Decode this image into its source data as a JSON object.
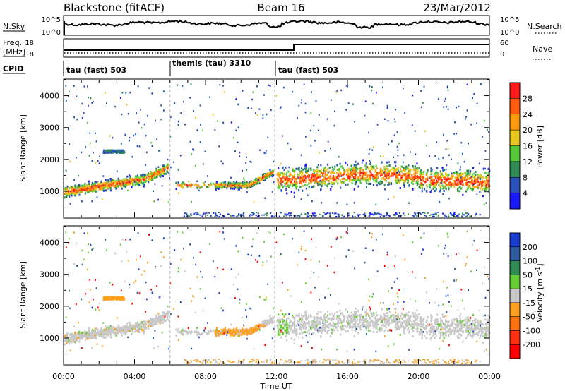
{
  "header": {
    "radar": "Blackstone (fitACF)",
    "beam": "Beam 16",
    "date": "23/Mar/2012"
  },
  "nsky_panel": {
    "left_label": "N.Sky",
    "right_label": "N.Search",
    "left_ticks": [
      "10^5",
      "10^0"
    ],
    "right_ticks": [
      "10^5",
      "10^0"
    ]
  },
  "freq_panel": {
    "left_label_top": "Freq.",
    "left_label_bottom": "[MHz]",
    "right_label": "Nave",
    "left_ticks": [
      "18",
      "8"
    ],
    "right_ticks": [
      "60",
      "0"
    ]
  },
  "cpid_panel": {
    "label": "CPID",
    "segments": [
      {
        "label": "tau (fast) 503",
        "start_hour": 0,
        "end_hour": 6
      },
      {
        "label": "themis (tau) 3310",
        "start_hour": 6,
        "end_hour": 11.9
      },
      {
        "label": "tau (fast) 503",
        "start_hour": 11.9,
        "end_hour": 24
      }
    ]
  },
  "colors": {
    "power": [
      "#1a1aff",
      "#2b4fb8",
      "#2f8a52",
      "#55c83a",
      "#e8c81e",
      "#ff9a10",
      "#ff5a10",
      "#ff1a1a"
    ],
    "velocity_pos": [
      "#1a3fd0",
      "#2f5a9a",
      "#2f8a52",
      "#66cc33"
    ],
    "velocity_neg": [
      "#c8c8c8",
      "#ffa020",
      "#ff7010",
      "#ff3010",
      "#ff0000"
    ]
  },
  "chart_data": [
    {
      "type": "heatmap",
      "title": "",
      "xlabel": "",
      "ylabel": "Slant Range [km]",
      "xlim": [
        "00:00",
        "24:00"
      ],
      "ylim": [
        180,
        4500
      ],
      "yticks": [
        "1000",
        "2000",
        "3000",
        "4000"
      ],
      "colorbar_label": "Power [dB]",
      "colorbar_ticks": [
        "4",
        "8",
        "12",
        "16",
        "20",
        "24",
        "28"
      ],
      "colorbar_range": [
        0,
        32
      ],
      "bands": [
        {
          "t_start": 0.0,
          "t_end": 6.0,
          "range_start_km": 950,
          "range_end_km": 1900,
          "value": "4–30 dB"
        },
        {
          "t_start": 6.1,
          "t_end": 11.9,
          "range_start_km": 1100,
          "range_end_km": 1400,
          "value": "4–20 dB"
        },
        {
          "t_start": 11.9,
          "t_end": 24.0,
          "range_start_km": 1000,
          "range_end_km": 2100,
          "value": "4–30 dB"
        }
      ]
    },
    {
      "type": "heatmap",
      "title": "",
      "xlabel": "Time UT",
      "ylabel": "Slant Range [km]",
      "xlim": [
        "00:00",
        "24:00"
      ],
      "xticks": [
        "00:00",
        "04:00",
        "08:00",
        "12:00",
        "16:00",
        "20:00",
        "00:00"
      ],
      "ylim": [
        180,
        4500
      ],
      "yticks": [
        "1000",
        "2000",
        "3000",
        "4000"
      ],
      "colorbar_label": "Velocity [m s",
      "colorbar_label_sup": "-1",
      "colorbar_label_end": "]",
      "colorbar_ticks": [
        "200",
        "100",
        "50",
        "15",
        "-15",
        "-50",
        "-100",
        "-200"
      ],
      "colorbar_range": [
        -250,
        250
      ]
    }
  ]
}
